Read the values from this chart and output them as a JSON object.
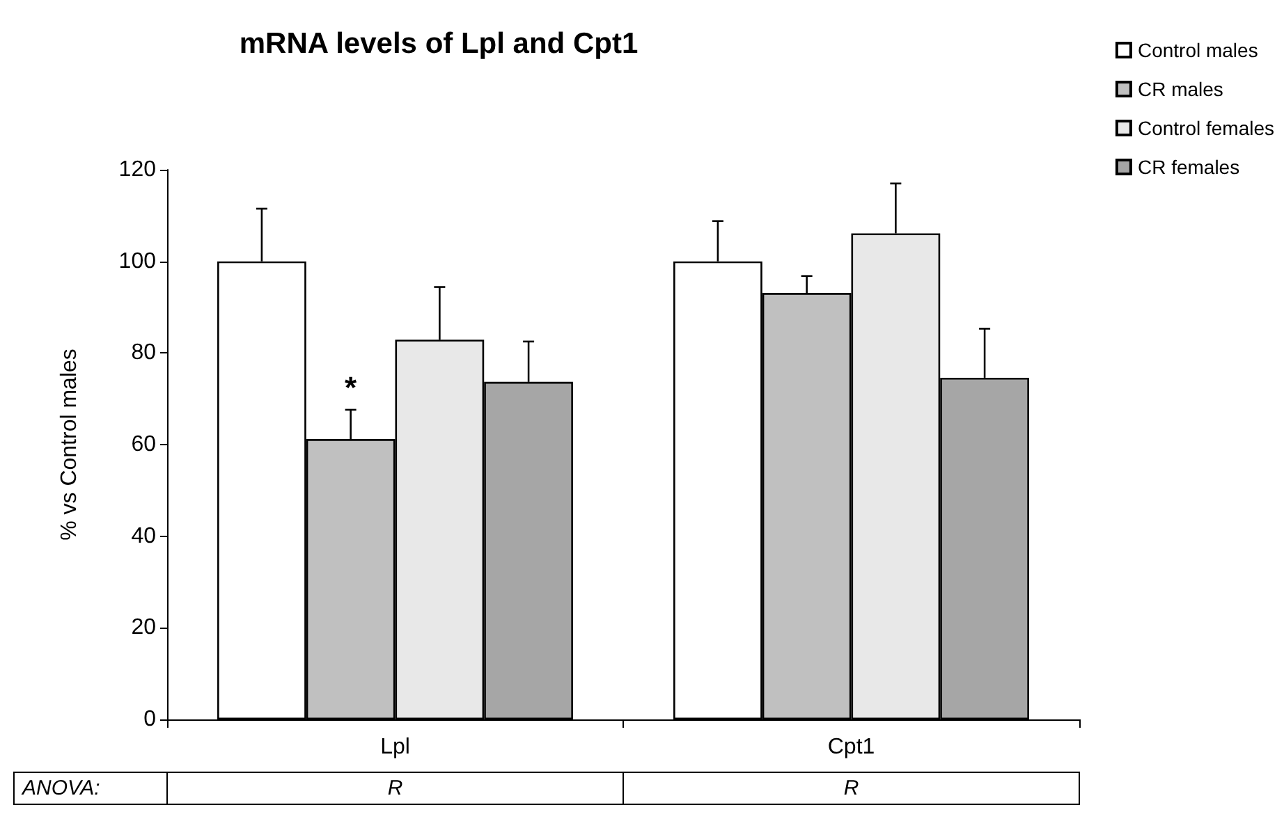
{
  "chart_data": {
    "type": "bar",
    "title": "mRNA levels of Lpl and Cpt1",
    "ylabel": "% vs Control males",
    "categories": [
      "Lpl",
      "Cpt1"
    ],
    "series": [
      {
        "name": "Control males",
        "color": "#ffffff",
        "values": [
          100,
          100
        ],
        "errors": [
          [
            100,
            111.5
          ],
          [
            100,
            108.8
          ]
        ]
      },
      {
        "name": "CR males",
        "color": "#c0c0c0",
        "values": [
          61.2,
          93.1
        ],
        "errors": [
          [
            61.2,
            67.6
          ],
          [
            93.1,
            96.8
          ]
        ],
        "value_labels": [
          "*",
          null
        ]
      },
      {
        "name": "Control females",
        "color": "#e8e8e8",
        "values": [
          82.9,
          106.1
        ],
        "errors": [
          [
            82.9,
            94.4
          ],
          [
            106.1,
            117
          ]
        ]
      },
      {
        "name": "CR females",
        "color": "#a6a6a6",
        "values": [
          73.7,
          74.6
        ],
        "errors": [
          [
            73.7,
            82.5
          ],
          [
            74.6,
            85.3
          ]
        ]
      }
    ],
    "ylim": [
      0,
      120
    ],
    "yticks": [
      0,
      20,
      40,
      60,
      80,
      100,
      120
    ],
    "grid": false,
    "legend": "top right",
    "annotations": [
      "ANOVA:",
      "R",
      "R"
    ]
  }
}
